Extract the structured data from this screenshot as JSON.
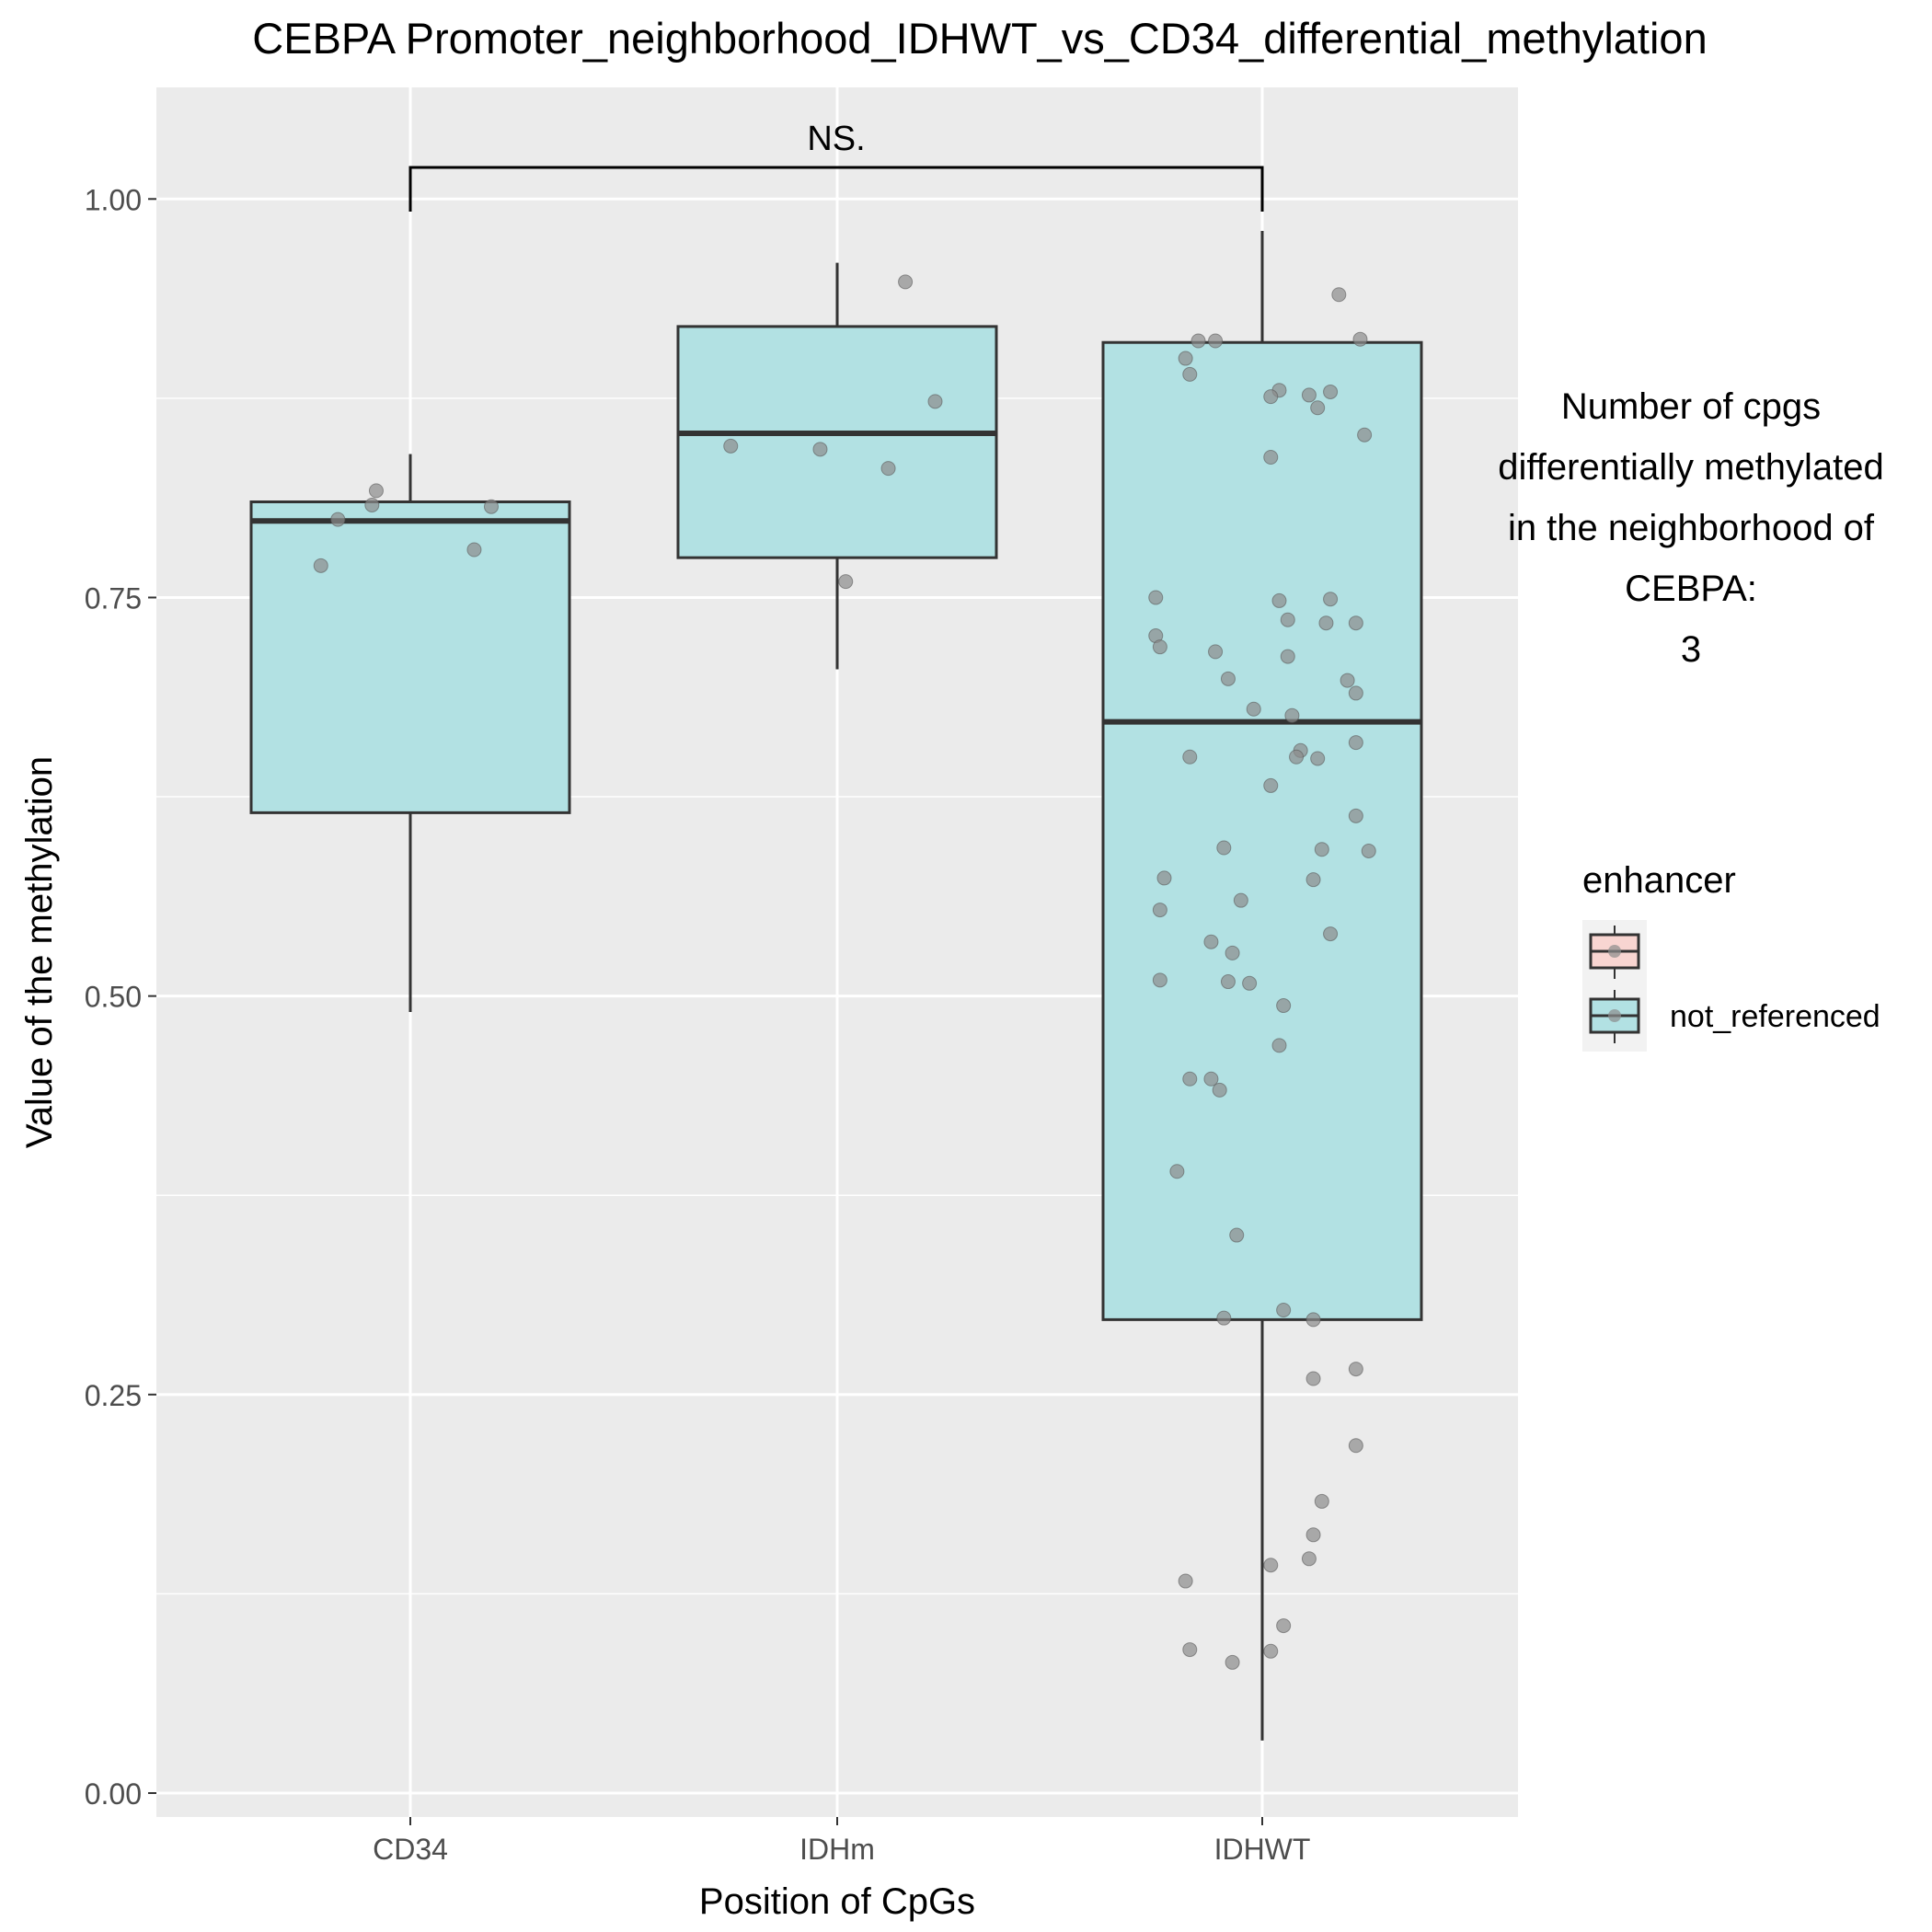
{
  "chart_data": {
    "type": "box",
    "title": "CEBPA Promoter_neighborhood_IDHWT_vs_CD34_differential_methylation",
    "xlabel": "Position of CpGs",
    "ylabel": "Value of the methylation",
    "ylim": [
      -0.015,
      1.07
    ],
    "yticks": [
      0.0,
      0.25,
      0.5,
      0.75,
      1.0
    ],
    "ytick_labels": [
      "0.00",
      "0.25",
      "0.50",
      "0.75",
      "1.00"
    ],
    "grid": true,
    "categories": [
      "CD34",
      "IDHm",
      "IDHWT"
    ],
    "boxes": [
      {
        "category": "CD34",
        "q1": 0.615,
        "median": 0.798,
        "q3": 0.81,
        "whisker_low": 0.49,
        "whisker_high": 0.84
      },
      {
        "category": "IDHm",
        "q1": 0.775,
        "median": 0.853,
        "q3": 0.92,
        "whisker_low": 0.705,
        "whisker_high": 0.96
      },
      {
        "category": "IDHWT",
        "q1": 0.297,
        "median": 0.672,
        "q3": 0.91,
        "whisker_low": 0.033,
        "whisker_high": 0.98
      }
    ],
    "points": [
      {
        "category": "CD34",
        "values": [
          0.77,
          0.799,
          0.808,
          0.817,
          0.78,
          0.807
        ],
        "offsets": [
          -0.21,
          -0.17,
          -0.09,
          -0.08,
          0.15,
          0.19
        ]
      },
      {
        "category": "IDHm",
        "values": [
          0.948,
          0.873,
          0.845,
          0.843,
          0.831,
          0.76
        ],
        "offsets": [
          0.16,
          0.23,
          -0.25,
          -0.04,
          0.12,
          0.02
        ]
      },
      {
        "category": "IDHWT",
        "values": [
          0.94,
          0.912,
          0.911,
          0.911,
          0.9,
          0.89,
          0.88,
          0.876,
          0.877,
          0.879,
          0.869,
          0.852,
          0.838,
          0.75,
          0.748,
          0.749,
          0.736,
          0.734,
          0.734,
          0.726,
          0.719,
          0.716,
          0.713,
          0.699,
          0.698,
          0.69,
          0.68,
          0.676,
          0.659,
          0.654,
          0.65,
          0.65,
          0.649,
          0.632,
          0.613,
          0.593,
          0.592,
          0.591,
          0.574,
          0.573,
          0.56,
          0.554,
          0.539,
          0.534,
          0.527,
          0.51,
          0.509,
          0.508,
          0.494,
          0.469,
          0.448,
          0.448,
          0.441,
          0.39,
          0.35,
          0.303,
          0.298,
          0.297,
          0.266,
          0.26,
          0.218,
          0.183,
          0.162,
          0.147,
          0.143,
          0.133,
          0.105,
          0.09,
          0.089,
          0.082
        ],
        "offsets": [
          0.18,
          0.23,
          -0.15,
          -0.11,
          -0.18,
          -0.17,
          0.04,
          0.02,
          0.11,
          0.16,
          0.13,
          0.24,
          0.02,
          -0.25,
          0.04,
          0.16,
          0.06,
          0.15,
          0.22,
          -0.25,
          -0.24,
          -0.11,
          0.06,
          -0.08,
          0.2,
          0.22,
          -0.02,
          0.07,
          0.22,
          0.09,
          -0.17,
          0.08,
          0.13,
          0.02,
          0.22,
          -0.09,
          0.14,
          0.25,
          -0.23,
          0.12,
          -0.05,
          -0.24,
          0.16,
          -0.12,
          -0.07,
          -0.24,
          -0.08,
          -0.03,
          0.05,
          0.04,
          -0.17,
          -0.12,
          -0.1,
          -0.2,
          -0.06,
          0.05,
          -0.09,
          0.12,
          0.22,
          0.12,
          0.22,
          0.14,
          0.12,
          0.11,
          0.02,
          -0.18,
          0.05,
          -0.17,
          0.02,
          -0.07
        ]
      }
    ],
    "significance": {
      "label": "NS.",
      "from": "CD34",
      "to": "IDHWT"
    },
    "side_note": {
      "lines": [
        "Number of cpgs",
        "differentially methylated",
        "in the neighborhood of",
        "CEBPA:",
        "3"
      ]
    },
    "legend": {
      "title": "enhancer",
      "position": "right",
      "entries": [
        {
          "label": "",
          "fill": "#f8d5d1"
        },
        {
          "label": "not_referenced",
          "fill": "#b2e1e3"
        }
      ]
    },
    "colors": {
      "panel": "#ebebeb",
      "grid": "#ffffff",
      "box_fill": "#b2e1e3",
      "box_line": "#333333",
      "point": "#8c8c8c",
      "text": "#000000",
      "tick_text": "#4d4d4d"
    }
  }
}
